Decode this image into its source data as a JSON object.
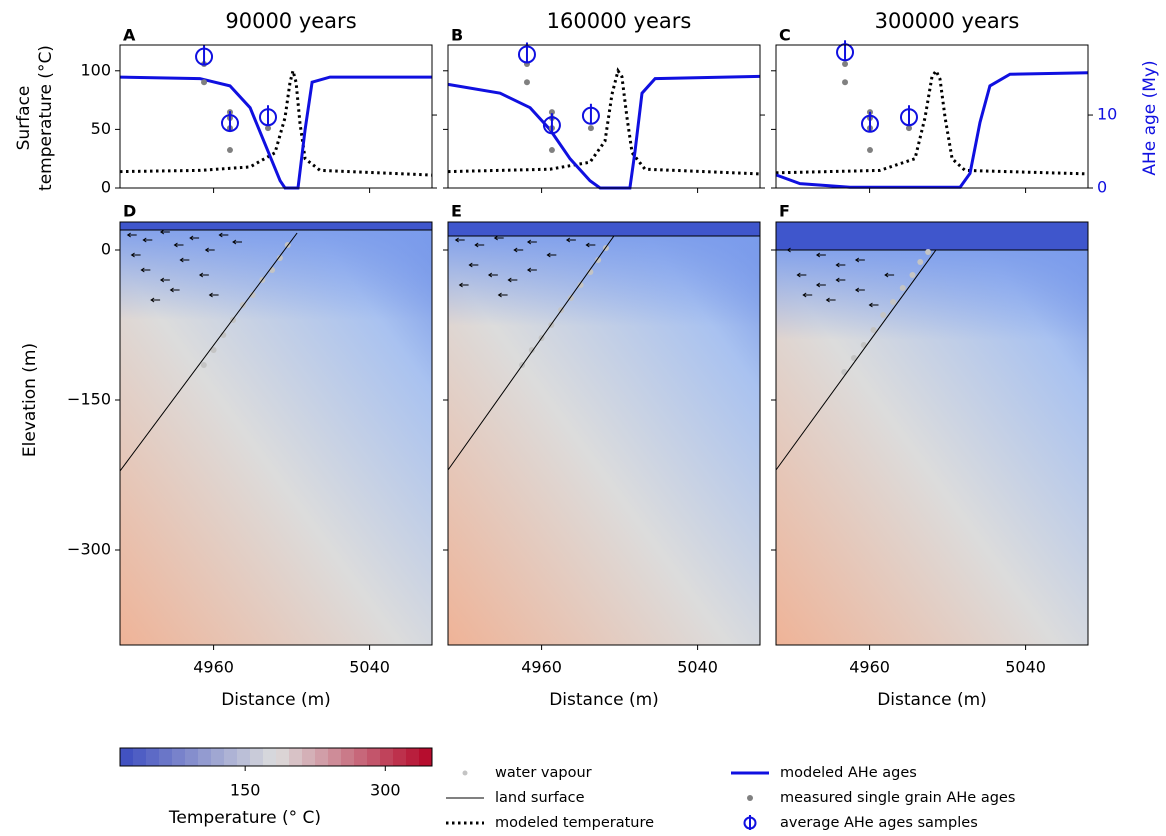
{
  "chart_data": {
    "type": "panel-grid",
    "xlabel": "Distance (m)",
    "xlim": [
      4912,
      5072
    ],
    "xticks": [
      4960,
      5040
    ],
    "top": {
      "ylabel_lines": [
        "Surface",
        "temperature (°C)"
      ],
      "ylim": [
        0,
        122
      ],
      "yticks": [
        0,
        50,
        100
      ],
      "y2label": "AHe age (My)",
      "y2lim": [
        0,
        19.6
      ],
      "y2ticks": [
        0,
        10
      ]
    },
    "bottom": {
      "ylabel": "Elevation (m)",
      "ylim": [
        -395,
        28
      ],
      "yticks": [
        {
          "value": -300,
          "label": "−300"
        },
        {
          "value": -150,
          "label": "−150"
        },
        0
      ]
    },
    "colorbar": {
      "label": "Temperature (° C)",
      "lim": [
        16,
        350
      ],
      "ticks": [
        150,
        300
      ],
      "colormap": [
        "#3b4cc0",
        "#dddddd",
        "#b40426"
      ]
    },
    "colors": {
      "temperature": "#000000",
      "ahe_model": "#1010e0",
      "measured": "#808080",
      "averages": "#1010e0",
      "vapour": "#c4c4c4",
      "land": "#000000",
      "water": "#3f56cc"
    },
    "legend": {
      "vapour": "water vapour",
      "land": "land surface",
      "temperature": "modeled temperature",
      "ahe_model": "modeled AHe ages",
      "measured": "measured single grain AHe ages",
      "averages": "average AHe ages samples"
    },
    "panels": [
      {
        "title": "90000 years",
        "top_letter": "A",
        "bottom_letter": "D",
        "temperature": {
          "x": [
            4912,
            4953,
            4978.7,
            4991.5,
            4996.6,
            4999.2,
            5000.7,
            5002.3,
            5004.3,
            5006.9,
            5014.6,
            5072
          ],
          "values": [
            14,
            15,
            18,
            30,
            60,
            90,
            100,
            90,
            55,
            25,
            15,
            11
          ]
        },
        "ahe_model": {
          "x": [
            4912,
            4953,
            4968.4,
            4978.7,
            4986.4,
            4994.1,
            4996.6,
            5003.3,
            5006.9,
            5010.5,
            5019.7,
            5072
          ],
          "values": [
            15.2,
            15,
            14,
            11,
            6,
            1,
            0,
            0,
            8,
            14.5,
            15.2,
            15.2
          ]
        },
        "measured": {
          "x": [
            4955.1,
            4955.1,
            4968.4,
            4968.4,
            4968.4,
            4968.4,
            4987.9
          ],
          "values": [
            17,
            14.5,
            10.4,
            9.6,
            8.2,
            5.2,
            8.2
          ]
        },
        "averages": {
          "x": [
            4955.1,
            4968.4,
            4987.9
          ],
          "values": [
            18,
            8.9,
            9.7
          ]
        },
        "surface_level": 20,
        "land_surface": {
          "x": [
            4912,
            5002.8
          ],
          "y": [
            -221,
            17
          ]
        },
        "vapour": {
          "x": [
            4998,
            4994,
            4990,
            4985,
            4980,
            4975,
            4970,
            4965,
            4960,
            4955
          ],
          "y": [
            5,
            -8,
            -20,
            -30,
            -45,
            -55,
            -70,
            -85,
            -100,
            -115
          ]
        },
        "flow": {
          "x": [
            4918,
            4926,
            4935,
            4942,
            4950,
            4958,
            4965,
            4972,
            4925,
            4935,
            4945,
            4955,
            4920,
            4940,
            4960,
            4930
          ],
          "y": [
            15,
            10,
            18,
            5,
            12,
            0,
            15,
            8,
            -20,
            -30,
            -10,
            -25,
            -5,
            -40,
            -45,
            -50
          ]
        }
      },
      {
        "title": "160000 years",
        "top_letter": "B",
        "bottom_letter": "E",
        "temperature": {
          "x": [
            4912,
            4964.3,
            4984.8,
            4992.5,
            4996.1,
            4999.2,
            5001.2,
            5003.8,
            5006.4,
            5013,
            5072
          ],
          "values": [
            14,
            16,
            22,
            40,
            80,
            100,
            95,
            60,
            30,
            16,
            12
          ]
        },
        "ahe_model": {
          "x": [
            4912,
            4938.7,
            4954.1,
            4964.3,
            4974.6,
            4984.8,
            4990,
            5005.3,
            5007.9,
            5011.5,
            5018.2,
            5072
          ],
          "values": [
            14.2,
            13,
            11,
            8,
            4,
            1,
            0,
            0,
            5,
            13,
            15,
            15.3
          ]
        },
        "measured": {
          "x": [
            4952.5,
            4952.5,
            4965.3,
            4965.3,
            4965.3,
            4965.3,
            4985.3
          ],
          "values": [
            17,
            14.5,
            10.4,
            9.6,
            8.2,
            5.2,
            8.2
          ]
        },
        "averages": {
          "x": [
            4952.5,
            4965.3,
            4985.3
          ],
          "values": [
            18.3,
            8.6,
            9.9
          ]
        },
        "surface_level": 14,
        "land_surface": {
          "x": [
            4912,
            4997.1
          ],
          "y": [
            -220,
            14
          ]
        },
        "vapour": {
          "x": [
            4993,
            4989,
            4985,
            4980,
            4975,
            4970,
            4965,
            4960,
            4955,
            4950
          ],
          "y": [
            2,
            -10,
            -22,
            -35,
            -48,
            -60,
            -75,
            -88,
            -100,
            -115
          ]
        },
        "flow": {
          "x": [
            4918,
            4928,
            4938,
            4948,
            4955,
            4965,
            4975,
            4985,
            4925,
            4935,
            4945,
            4955,
            4920,
            4940
          ],
          "y": [
            10,
            5,
            12,
            0,
            8,
            -5,
            10,
            5,
            -15,
            -25,
            -30,
            -20,
            -35,
            -45
          ]
        }
      },
      {
        "title": "300000 years",
        "top_letter": "C",
        "bottom_letter": "F",
        "temperature": {
          "x": [
            4912,
            4965.3,
            4983.3,
            4988.4,
            4992,
            4994.1,
            4996.1,
            4998.7,
            5002.3,
            5008.9,
            5072
          ],
          "values": [
            13,
            15,
            25,
            60,
            95,
            100,
            93,
            60,
            25,
            15,
            12
          ]
        },
        "ahe_model": {
          "x": [
            4912,
            4924.3,
            4949.9,
            5006.4,
            5011.5,
            5016.6,
            5021.7,
            5032,
            5072
          ],
          "values": [
            1.8,
            0.6,
            0.1,
            0.1,
            2,
            9,
            14,
            15.6,
            15.8
          ]
        },
        "measured": {
          "x": [
            4947.4,
            4947.4,
            4960.2,
            4960.2,
            4960.2,
            4960.2,
            4980.2
          ],
          "values": [
            17,
            14.5,
            10.4,
            9.6,
            8.2,
            5.2,
            8.2
          ]
        },
        "averages": {
          "x": [
            4947.4,
            4960.2,
            4980.2
          ],
          "values": [
            18.6,
            8.8,
            9.7
          ]
        },
        "surface_level": 0,
        "land_surface": {
          "x": [
            4912,
            4994
          ],
          "y": [
            -220,
            0
          ]
        },
        "vapour": {
          "x": [
            4990,
            4986,
            4982,
            4977,
            4972,
            4967,
            4962,
            4957,
            4952,
            4947
          ],
          "y": [
            -2,
            -12,
            -25,
            -38,
            -52,
            -65,
            -80,
            -95,
            -108,
            -122
          ]
        },
        "flow": {
          "x": [
            4920,
            4935,
            4945,
            4955,
            4925,
            4935,
            4945,
            4928,
            4940,
            4955,
            4962,
            4970
          ],
          "y": [
            0,
            -5,
            -15,
            -10,
            -25,
            -35,
            -30,
            -45,
            -50,
            -40,
            -55,
            -25
          ]
        }
      }
    ]
  }
}
